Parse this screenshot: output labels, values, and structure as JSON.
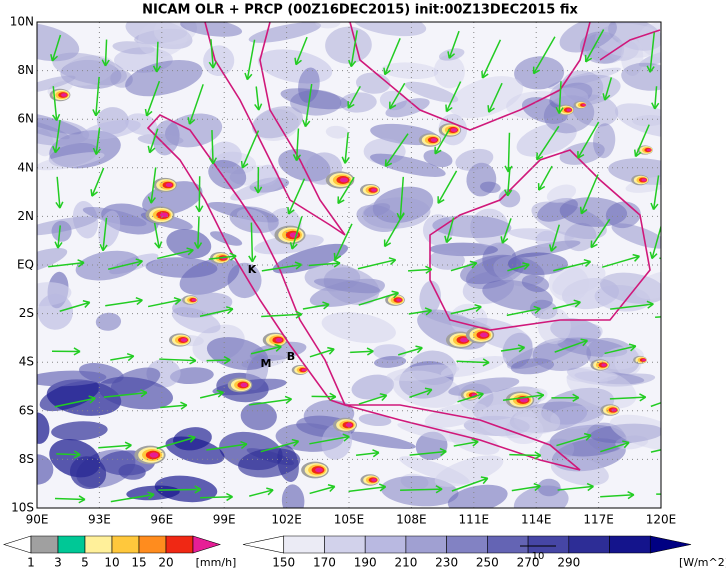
{
  "title": "NICAM OLR + PRCP (00Z16DEC2015) init:00Z13DEC2015 fix",
  "lat_labels": [
    "10N",
    "8N",
    "6N",
    "4N",
    "2N",
    "EQ",
    "2S",
    "4S",
    "6S",
    "8S",
    "10S"
  ],
  "lon_labels": [
    "90E",
    "93E",
    "96E",
    "99E",
    "102E",
    "105E",
    "108E",
    "111E",
    "114E",
    "117E",
    "120E"
  ],
  "places": [
    "K",
    "M",
    "B"
  ],
  "vector_reference": "10",
  "precip_scale": {
    "labels": [
      "1",
      "3",
      "5",
      "10",
      "15",
      "20"
    ],
    "unit": "[mm/h]",
    "colors": [
      "#ffffff",
      "#a0a0a0",
      "#00c896",
      "#fff09a",
      "#ffc83c",
      "#ff8c1e",
      "#f02814",
      "#e61e96"
    ]
  },
  "olr_scale": {
    "labels": [
      "150",
      "170",
      "190",
      "210",
      "230",
      "250",
      "270",
      "290"
    ],
    "unit": "[W/m^2]",
    "colors": [
      "#ffffff",
      "#ebebf5",
      "#d2d2eb",
      "#b9b9e1",
      "#a0a0d2",
      "#8282c3",
      "#6464b4",
      "#4646a5",
      "#2d2d96",
      "#14148c",
      "#000082"
    ]
  }
}
